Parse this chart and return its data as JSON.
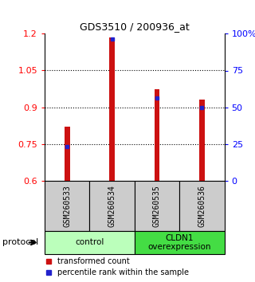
{
  "title": "GDS3510 / 200936_at",
  "samples": [
    "GSM260533",
    "GSM260534",
    "GSM260535",
    "GSM260536"
  ],
  "transformed_counts": [
    0.82,
    1.185,
    0.975,
    0.93
  ],
  "percentile_ranks": [
    0.23,
    0.965,
    0.565,
    0.5
  ],
  "ylim_left": [
    0.6,
    1.2
  ],
  "ylim_right": [
    0,
    100
  ],
  "yticks_left": [
    0.6,
    0.75,
    0.9,
    1.05,
    1.2
  ],
  "yticks_right": [
    0,
    25,
    50,
    75,
    100
  ],
  "ytick_labels_left": [
    "0.6",
    "0.75",
    "0.9",
    "1.05",
    "1.2"
  ],
  "ytick_labels_right": [
    "0",
    "25",
    "50",
    "75",
    "100%"
  ],
  "bar_color": "#cc1111",
  "pct_color": "#2222cc",
  "background_color": "#ffffff",
  "grid_color": "#000000",
  "groups": [
    {
      "label": "control",
      "samples": [
        0,
        1
      ],
      "color": "#bbffbb"
    },
    {
      "label": "CLDN1\noverexpression",
      "samples": [
        2,
        3
      ],
      "color": "#44dd44"
    }
  ],
  "sample_bg_color": "#cccccc",
  "bar_width": 0.12,
  "legend_red_label": "transformed count",
  "legend_blue_label": "percentile rank within the sample",
  "protocol_label": "protocol"
}
